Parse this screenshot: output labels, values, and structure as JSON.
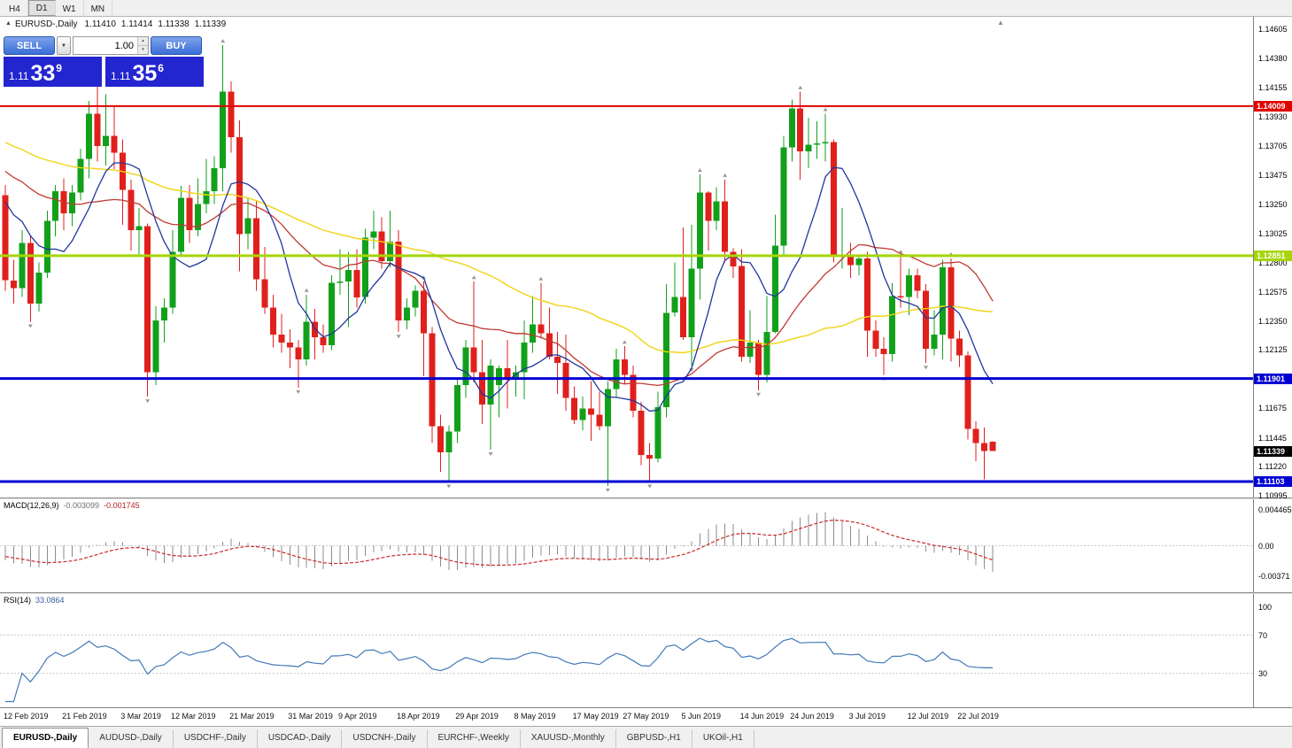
{
  "icons": {
    "collapse": "▲",
    "dropdown": "▼",
    "spinner_up": "▴",
    "spinner_down": "▾",
    "shift": "▲"
  },
  "toolbar": {
    "timeframes": [
      {
        "label": "H4",
        "active": false
      },
      {
        "label": "D1",
        "active": true
      },
      {
        "label": "W1",
        "active": false
      },
      {
        "label": "MN",
        "active": false
      }
    ]
  },
  "title_bar": {
    "symbol": "EURUSD-,Daily",
    "open": "1.11410",
    "high": "1.11414",
    "low": "1.11338",
    "close": "1.11339"
  },
  "trade_panel": {
    "sell_label": "SELL",
    "buy_label": "BUY",
    "lot_value": "1.00",
    "sell_price": {
      "prefix": "1.11",
      "main": "33",
      "sup": "9"
    },
    "buy_price": {
      "prefix": "1.11",
      "main": "35",
      "sup": "6"
    }
  },
  "price_axis": {
    "labels": [
      "1.14605",
      "1.14380",
      "1.14155",
      "1.13930",
      "1.13705",
      "1.13475",
      "1.13250",
      "1.13025",
      "1.12800",
      "1.12575",
      "1.12350",
      "1.12125",
      "1.11900",
      "1.11675",
      "1.11445",
      "1.11220",
      "1.10995"
    ]
  },
  "hlines": [
    {
      "price": 1.14009,
      "label": "1.14009",
      "color": "#e10000",
      "width": 2
    },
    {
      "price": 1.12851,
      "label": "1.12851",
      "color": "#a6d50a",
      "width": 3
    },
    {
      "price": 1.11901,
      "label": "1.11901",
      "color": "#0000d2",
      "width": 3
    },
    {
      "price": 1.11103,
      "label": "1.11103",
      "color": "#0000d2",
      "width": 3
    }
  ],
  "current_price_tag": {
    "price": 1.11339,
    "label": "1.11339",
    "bg": "#000000"
  },
  "macd_panel": {
    "name": "MACD(12,26,9)",
    "value1": "-0.003099",
    "value2": "-0.001745",
    "axis_labels": [
      {
        "text": "0.004465",
        "value": 0.004465
      },
      {
        "text": "0.00",
        "value": 0
      },
      {
        "text": "-0.00371",
        "value": -0.00371
      }
    ]
  },
  "rsi_panel": {
    "name": "RSI(14)",
    "value": "33.0864",
    "axis_labels": [
      {
        "text": "100",
        "value": 100
      },
      {
        "text": "70",
        "value": 70
      },
      {
        "text": "30",
        "value": 30
      }
    ],
    "levels": [
      70,
      30
    ]
  },
  "date_axis": {
    "labels": [
      {
        "text": "12 Feb 2019",
        "i": 0
      },
      {
        "text": "21 Feb 2019",
        "i": 7
      },
      {
        "text": "3 Mar 2019",
        "i": 14
      },
      {
        "text": "12 Mar 2019",
        "i": 20
      },
      {
        "text": "21 Mar 2019",
        "i": 27
      },
      {
        "text": "31 Mar 2019",
        "i": 34
      },
      {
        "text": "9 Apr 2019",
        "i": 40
      },
      {
        "text": "18 Apr 2019",
        "i": 47
      },
      {
        "text": "29 Apr 2019",
        "i": 54
      },
      {
        "text": "8 May 2019",
        "i": 61
      },
      {
        "text": "17 May 2019",
        "i": 68
      },
      {
        "text": "27 May 2019",
        "i": 74
      },
      {
        "text": "5 Jun 2019",
        "i": 81
      },
      {
        "text": "14 Jun 2019",
        "i": 88
      },
      {
        "text": "24 Jun 2019",
        "i": 94
      },
      {
        "text": "3 Jul 2019",
        "i": 101
      },
      {
        "text": "12 Jul 2019",
        "i": 108
      },
      {
        "text": "22 Jul 2019",
        "i": 114
      }
    ]
  },
  "tabs": [
    {
      "label": "EURUSD-,Daily",
      "active": true
    },
    {
      "label": "AUDUSD-,Daily",
      "active": false
    },
    {
      "label": "USDCHF-,Daily",
      "active": false
    },
    {
      "label": "USDCAD-,Daily",
      "active": false
    },
    {
      "label": "USDCNH-,Daily",
      "active": false
    },
    {
      "label": "EURCHF-,Weekly",
      "active": false
    },
    {
      "label": "XAUUSD-,Monthly",
      "active": false
    },
    {
      "label": "GBPUSD-,H1",
      "active": false
    },
    {
      "label": "UKOil-,H1",
      "active": false
    }
  ],
  "colors": {
    "bull": "#12a01b",
    "bear": "#e0201c",
    "ma_fast": "#22359e",
    "ma_mid": "#c03a32",
    "ma_slow": "#f0d413",
    "macd_hist": "#8c8c8c",
    "macd_signal": "#cc2a2a",
    "rsi_line": "#4379b8",
    "level_line": "#c8c8c8",
    "fractal": "#999999"
  },
  "chart_data": {
    "type": "candlestick",
    "symbol": "EURUSD",
    "timeframe": "Daily",
    "title": "EURUSD-,Daily",
    "price_range": {
      "top": 1.147,
      "bottom": 1.1098
    },
    "candles": [
      [
        1.1332,
        1.134,
        1.1258,
        1.1266
      ],
      [
        1.1266,
        1.1282,
        1.1248,
        1.126
      ],
      [
        1.126,
        1.1305,
        1.1253,
        1.1295
      ],
      [
        1.1295,
        1.13,
        1.1234,
        1.1248
      ],
      [
        1.1248,
        1.128,
        1.1242,
        1.1272
      ],
      [
        1.1272,
        1.132,
        1.1268,
        1.1312
      ],
      [
        1.1312,
        1.134,
        1.13,
        1.1335
      ],
      [
        1.1335,
        1.1345,
        1.1305,
        1.1318
      ],
      [
        1.1318,
        1.134,
        1.1308,
        1.1334
      ],
      [
        1.1334,
        1.1368,
        1.1328,
        1.136
      ],
      [
        1.136,
        1.1405,
        1.1345,
        1.1395
      ],
      [
        1.1395,
        1.142,
        1.1358,
        1.137
      ],
      [
        1.137,
        1.141,
        1.1355,
        1.1378
      ],
      [
        1.1378,
        1.14,
        1.1352,
        1.1365
      ],
      [
        1.1365,
        1.1375,
        1.1309,
        1.1336
      ],
      [
        1.1336,
        1.1344,
        1.1289,
        1.1305
      ],
      [
        1.1305,
        1.1322,
        1.1285,
        1.1308
      ],
      [
        1.1308,
        1.131,
        1.1176,
        1.1195
      ],
      [
        1.1195,
        1.1246,
        1.1185,
        1.1235
      ],
      [
        1.1235,
        1.1252,
        1.1218,
        1.1245
      ],
      [
        1.1245,
        1.1305,
        1.124,
        1.1288
      ],
      [
        1.1288,
        1.1339,
        1.1285,
        1.133
      ],
      [
        1.133,
        1.134,
        1.1295,
        1.1305
      ],
      [
        1.1305,
        1.1345,
        1.13,
        1.1325
      ],
      [
        1.1325,
        1.136,
        1.1318,
        1.1335
      ],
      [
        1.1335,
        1.1362,
        1.1325,
        1.1353
      ],
      [
        1.1353,
        1.1448,
        1.1335,
        1.1412
      ],
      [
        1.1412,
        1.142,
        1.1365,
        1.1377
      ],
      [
        1.1377,
        1.139,
        1.1273,
        1.1302
      ],
      [
        1.1302,
        1.133,
        1.129,
        1.1314
      ],
      [
        1.1314,
        1.1327,
        1.1258,
        1.1267
      ],
      [
        1.1267,
        1.1292,
        1.124,
        1.1245
      ],
      [
        1.1245,
        1.1255,
        1.1214,
        1.1224
      ],
      [
        1.1224,
        1.124,
        1.121,
        1.1218
      ],
      [
        1.1218,
        1.1228,
        1.1198,
        1.1214
      ],
      [
        1.1214,
        1.122,
        1.1183,
        1.1205
      ],
      [
        1.1205,
        1.1255,
        1.12,
        1.1234
      ],
      [
        1.1234,
        1.1244,
        1.1205,
        1.1222
      ],
      [
        1.1222,
        1.1232,
        1.121,
        1.1216
      ],
      [
        1.1216,
        1.127,
        1.1212,
        1.1264
      ],
      [
        1.1264,
        1.129,
        1.1255,
        1.1265
      ],
      [
        1.1265,
        1.1288,
        1.123,
        1.1274
      ],
      [
        1.1274,
        1.129,
        1.1245,
        1.1253
      ],
      [
        1.1253,
        1.1306,
        1.1248,
        1.1299
      ],
      [
        1.1299,
        1.132,
        1.129,
        1.1304
      ],
      [
        1.1304,
        1.1315,
        1.1275,
        1.1281
      ],
      [
        1.1281,
        1.132,
        1.1276,
        1.1296
      ],
      [
        1.1296,
        1.1305,
        1.1226,
        1.1235
      ],
      [
        1.1235,
        1.1252,
        1.1228,
        1.1245
      ],
      [
        1.1245,
        1.1262,
        1.1238,
        1.1258
      ],
      [
        1.1258,
        1.1265,
        1.1192,
        1.1225
      ],
      [
        1.1225,
        1.123,
        1.114,
        1.1153
      ],
      [
        1.1153,
        1.1162,
        1.1118,
        1.1133
      ],
      [
        1.1133,
        1.1154,
        1.111,
        1.1149
      ],
      [
        1.1149,
        1.119,
        1.114,
        1.1185
      ],
      [
        1.1185,
        1.122,
        1.1175,
        1.1214
      ],
      [
        1.1214,
        1.1265,
        1.1187,
        1.1195
      ],
      [
        1.1195,
        1.122,
        1.1155,
        1.117
      ],
      [
        1.117,
        1.1205,
        1.1135,
        1.12
      ],
      [
        1.1185,
        1.12,
        1.116,
        1.1198
      ],
      [
        1.1198,
        1.122,
        1.1167,
        1.119
      ],
      [
        1.119,
        1.12,
        1.1176,
        1.1195
      ],
      [
        1.1195,
        1.1235,
        1.1174,
        1.1218
      ],
      [
        1.1218,
        1.1254,
        1.121,
        1.1232
      ],
      [
        1.1232,
        1.1264,
        1.1221,
        1.1225
      ],
      [
        1.1225,
        1.1245,
        1.1205,
        1.1207
      ],
      [
        1.1207,
        1.1226,
        1.1178,
        1.1202
      ],
      [
        1.1202,
        1.1224,
        1.1165,
        1.1175
      ],
      [
        1.1175,
        1.1184,
        1.1155,
        1.1158
      ],
      [
        1.1158,
        1.1176,
        1.115,
        1.1167
      ],
      [
        1.1167,
        1.1188,
        1.1142,
        1.1162
      ],
      [
        1.1162,
        1.118,
        1.115,
        1.1153
      ],
      [
        1.1153,
        1.1188,
        1.1107,
        1.1182
      ],
      [
        1.1182,
        1.1213,
        1.1175,
        1.1205
      ],
      [
        1.1205,
        1.1215,
        1.1186,
        1.1193
      ],
      [
        1.1193,
        1.12,
        1.116,
        1.1165
      ],
      [
        1.1165,
        1.1172,
        1.1123,
        1.1131
      ],
      [
        1.1131,
        1.114,
        1.111,
        1.1128
      ],
      [
        1.1128,
        1.118,
        1.1125,
        1.1168
      ],
      [
        1.1168,
        1.1263,
        1.116,
        1.1241
      ],
      [
        1.1241,
        1.128,
        1.1238,
        1.1253
      ],
      [
        1.1253,
        1.1307,
        1.122,
        1.1222
      ],
      [
        1.1222,
        1.1309,
        1.12,
        1.1275
      ],
      [
        1.1275,
        1.1348,
        1.1251,
        1.1334
      ],
      [
        1.1334,
        1.1335,
        1.1289,
        1.1312
      ],
      [
        1.1312,
        1.1338,
        1.1305,
        1.1327
      ],
      [
        1.1327,
        1.1344,
        1.128,
        1.1288
      ],
      [
        1.1288,
        1.1291,
        1.1268,
        1.1277
      ],
      [
        1.1277,
        1.129,
        1.1203,
        1.1207
      ],
      [
        1.1207,
        1.1243,
        1.1202,
        1.1218
      ],
      [
        1.1218,
        1.122,
        1.1181,
        1.1193
      ],
      [
        1.1193,
        1.1254,
        1.1187,
        1.1226
      ],
      [
        1.1226,
        1.1317,
        1.1225,
        1.1293
      ],
      [
        1.1293,
        1.1378,
        1.1285,
        1.1369
      ],
      [
        1.1369,
        1.1406,
        1.1358,
        1.1399
      ],
      [
        1.1399,
        1.1412,
        1.1344,
        1.1366
      ],
      [
        1.1366,
        1.1392,
        1.1353,
        1.1371
      ],
      [
        1.1371,
        1.1389,
        1.136,
        1.1372
      ],
      [
        1.1372,
        1.1395,
        1.1358,
        1.1373
      ],
      [
        1.1373,
        1.1375,
        1.128,
        1.1285
      ],
      [
        1.1285,
        1.1322,
        1.1275,
        1.1286
      ],
      [
        1.1286,
        1.1295,
        1.1268,
        1.1278
      ],
      [
        1.1278,
        1.1286,
        1.127,
        1.1283
      ],
      [
        1.1283,
        1.1288,
        1.1207,
        1.1227
      ],
      [
        1.1227,
        1.1235,
        1.1207,
        1.1213
      ],
      [
        1.1213,
        1.1222,
        1.1193,
        1.1209
      ],
      [
        1.1209,
        1.1264,
        1.1203,
        1.1254
      ],
      [
        1.1254,
        1.1285,
        1.1245,
        1.1253
      ],
      [
        1.1253,
        1.1275,
        1.1239,
        1.127
      ],
      [
        1.127,
        1.1275,
        1.1252,
        1.1258
      ],
      [
        1.1258,
        1.1263,
        1.1202,
        1.1213
      ],
      [
        1.1213,
        1.1243,
        1.1208,
        1.1224
      ],
      [
        1.1224,
        1.1282,
        1.1205,
        1.1276
      ],
      [
        1.1276,
        1.1283,
        1.1203,
        1.1221
      ],
      [
        1.1221,
        1.1227,
        1.1199,
        1.1208
      ],
      [
        1.1208,
        1.1211,
        1.1143,
        1.1151
      ],
      [
        1.1151,
        1.1157,
        1.1126,
        1.114
      ],
      [
        1.114,
        1.1152,
        1.1112,
        1.1134
      ],
      [
        1.1141,
        1.11414,
        1.11338,
        1.11339
      ]
    ]
  }
}
